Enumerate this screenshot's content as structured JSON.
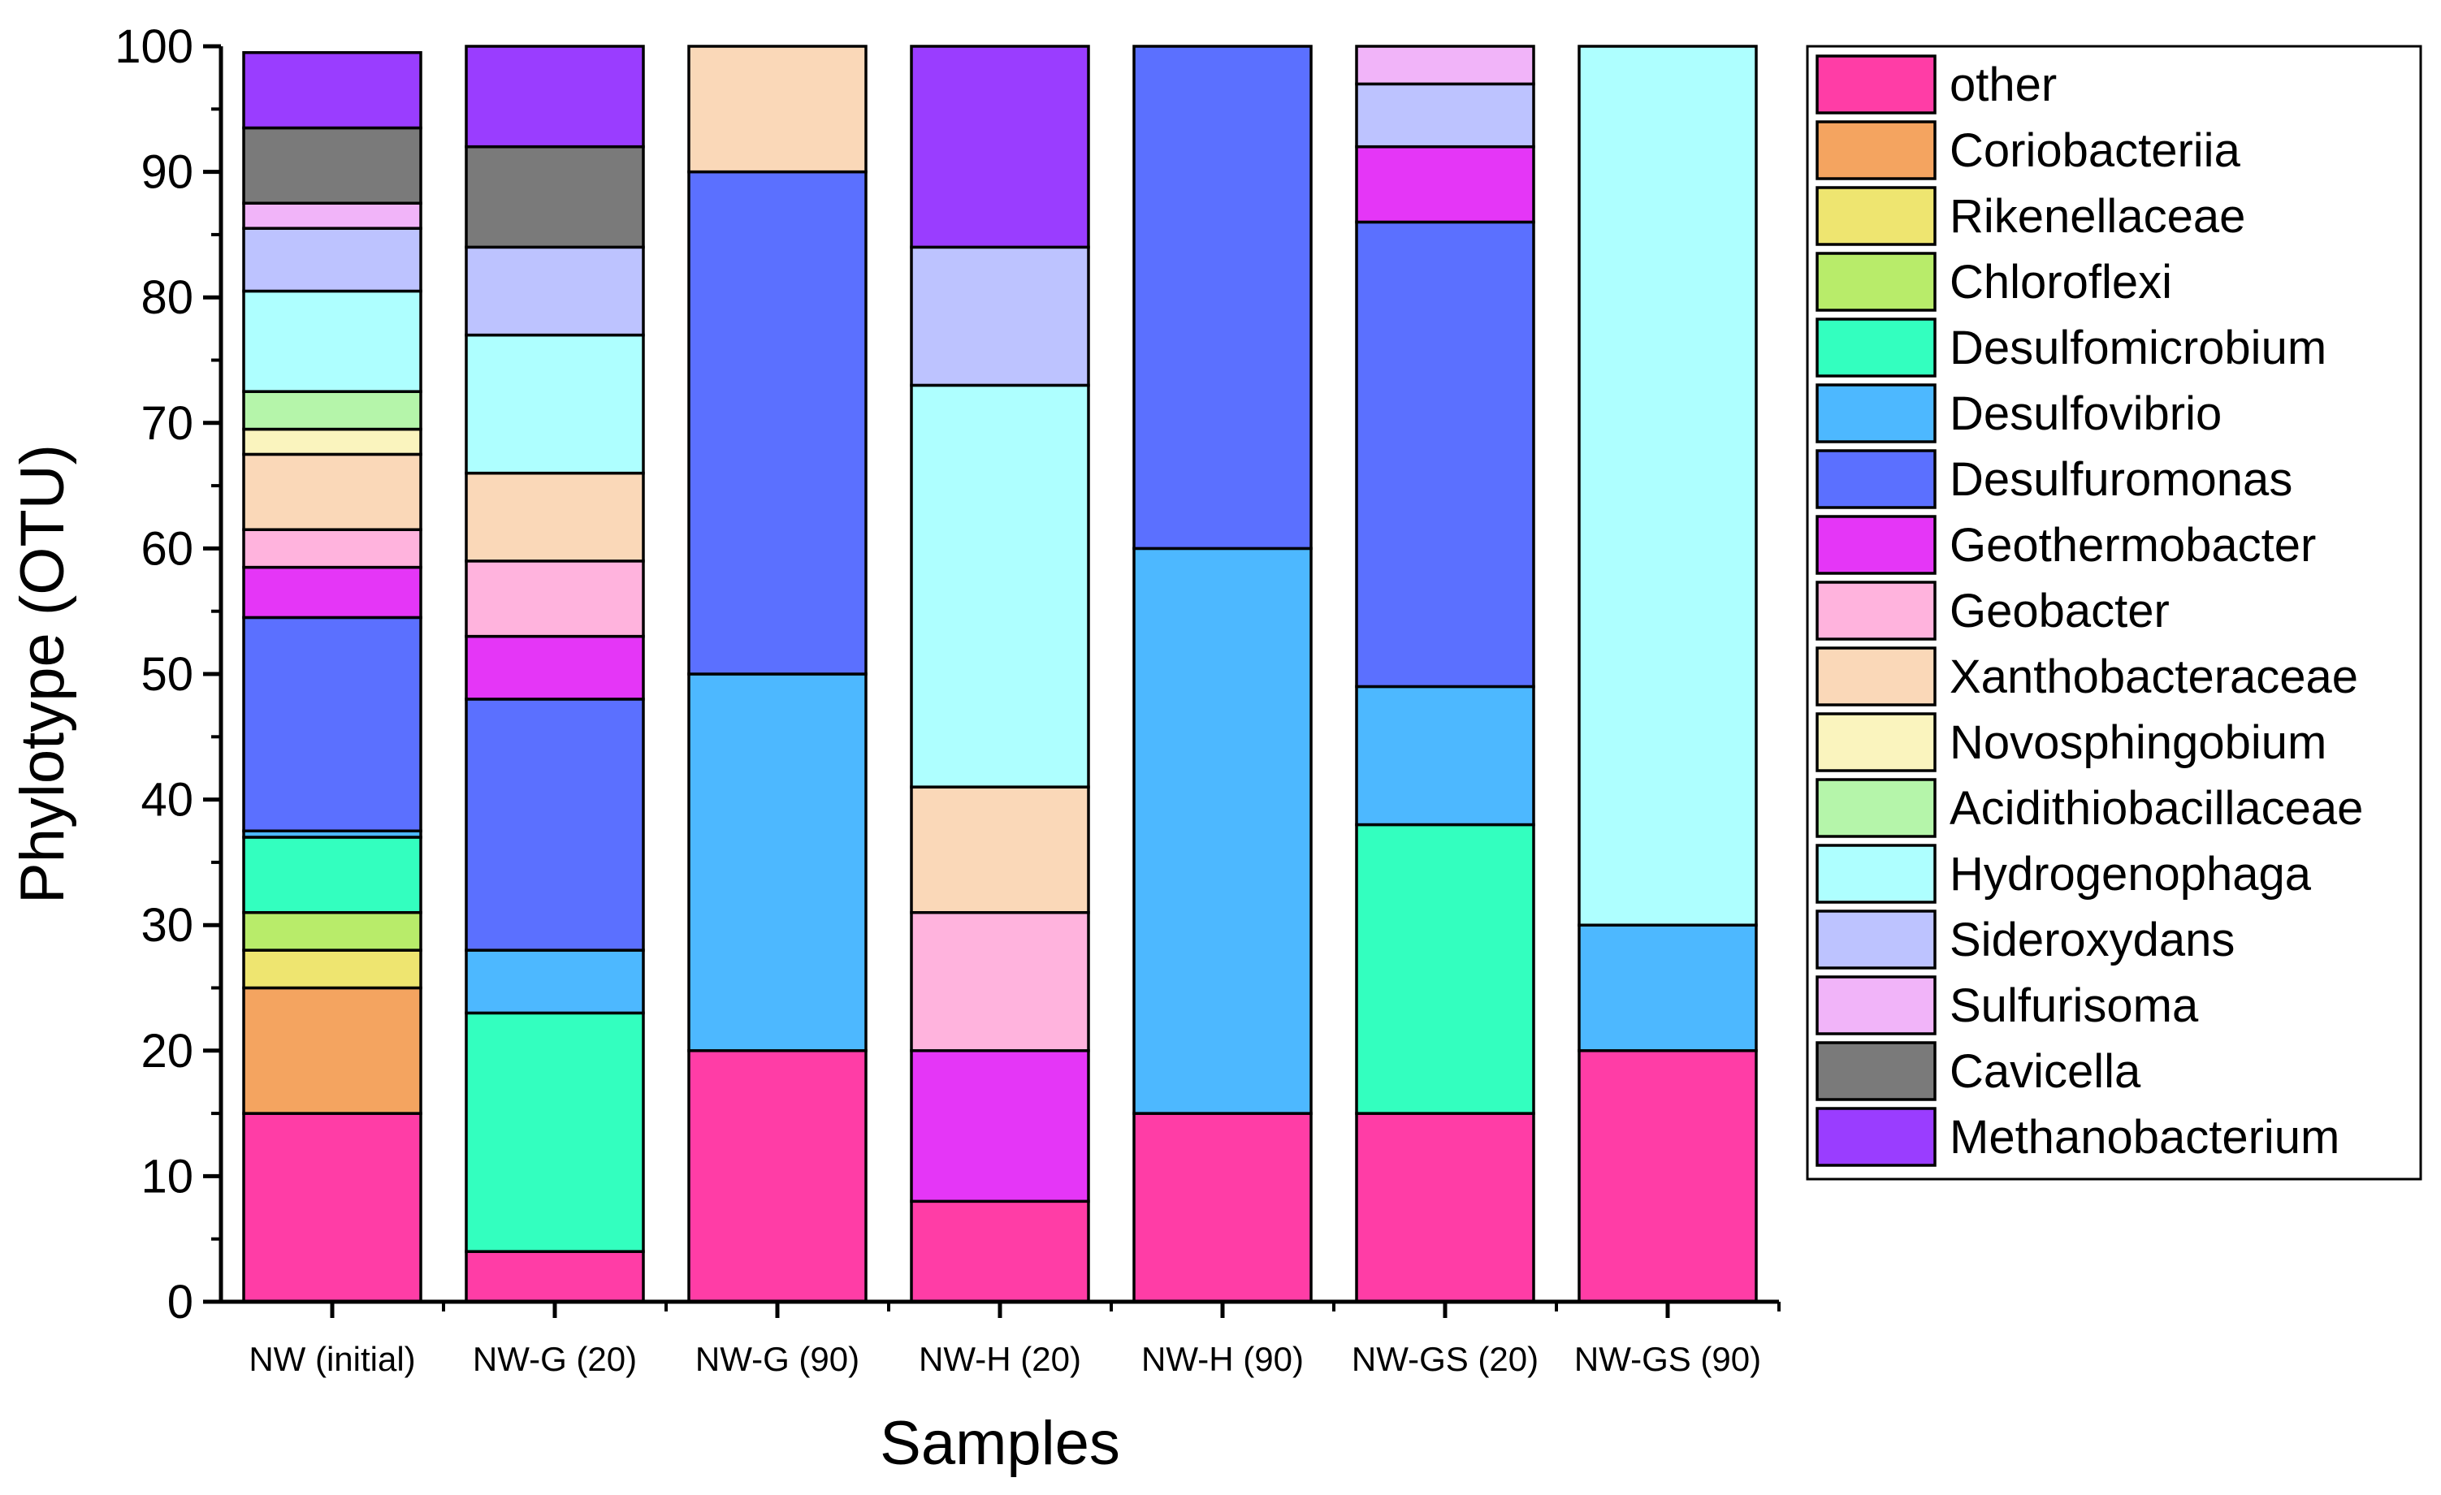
{
  "chart_data": {
    "type": "bar",
    "stacked": true,
    "title": "",
    "xlabel": "Samples",
    "ylabel": "Phylotype (OTU)",
    "ylim": [
      0,
      100
    ],
    "yticks": [
      0,
      10,
      20,
      30,
      40,
      50,
      60,
      70,
      80,
      90,
      100
    ],
    "legend_position": "right",
    "categories": [
      "NW (initial)",
      "NW-G (20)",
      "NW-G (90)",
      "NW-H (20)",
      "NW-H (90)",
      "NW-GS (20)",
      "NW-GS (90)"
    ],
    "series": [
      {
        "name": "other",
        "color": "#FF3DA6",
        "values": [
          15,
          4,
          20,
          8,
          15,
          15,
          20
        ]
      },
      {
        "name": "Coriobacteriia",
        "color": "#F4A460",
        "values": [
          10,
          0,
          0,
          0,
          0,
          0,
          0
        ]
      },
      {
        "name": "Rikenellaceae",
        "color": "#EEE570",
        "values": [
          3,
          0,
          0,
          0,
          0,
          0,
          0
        ]
      },
      {
        "name": "Chloroflexi",
        "color": "#B8EC6A",
        "values": [
          3,
          0,
          0,
          0,
          0,
          0,
          0
        ]
      },
      {
        "name": "Desulfomicrobium",
        "color": "#33FFBF",
        "values": [
          6,
          19,
          0,
          0,
          0,
          23,
          0
        ]
      },
      {
        "name": "Desulfovibrio",
        "color": "#4DB8FF",
        "values": [
          0.5,
          5,
          30,
          0,
          45,
          11,
          10
        ]
      },
      {
        "name": "Desulfuromonas",
        "color": "#5B70FF",
        "values": [
          17,
          20,
          40,
          0,
          40,
          37,
          0
        ]
      },
      {
        "name": "Geothermobacter",
        "color": "#E536F7",
        "values": [
          4,
          5,
          0,
          12,
          0,
          6,
          0
        ]
      },
      {
        "name": "Geobacter",
        "color": "#FFB3DD",
        "values": [
          3,
          6,
          0,
          11,
          0,
          0,
          0
        ]
      },
      {
        "name": "Xanthobacteraceae",
        "color": "#FAD8B8",
        "values": [
          6,
          7,
          10,
          10,
          0,
          0,
          0
        ]
      },
      {
        "name": "Novosphingobium",
        "color": "#FAF4BE",
        "values": [
          2,
          0,
          0,
          0,
          0,
          0,
          0
        ]
      },
      {
        "name": "Acidithiobacillaceae",
        "color": "#B5F5AA",
        "values": [
          3,
          0,
          0,
          0,
          0,
          0,
          0
        ]
      },
      {
        "name": "Hydrogenophaga",
        "color": "#AEFFFF",
        "values": [
          8,
          11,
          0,
          32,
          0,
          0,
          70
        ]
      },
      {
        "name": "Sideroxydans",
        "color": "#BDC3FF",
        "values": [
          5,
          7,
          0,
          11,
          0,
          5,
          0
        ]
      },
      {
        "name": "Sulfurisoma",
        "color": "#F1B4F9",
        "values": [
          2,
          0,
          0,
          0,
          0,
          3,
          0
        ]
      },
      {
        "name": "Cavicella",
        "color": "#7A7A7A",
        "values": [
          6,
          8,
          0,
          0,
          0,
          0,
          0
        ]
      },
      {
        "name": "Methanobacterium",
        "color": "#9A3DFF",
        "values": [
          6,
          8,
          0,
          16,
          0,
          0,
          0
        ]
      }
    ]
  }
}
